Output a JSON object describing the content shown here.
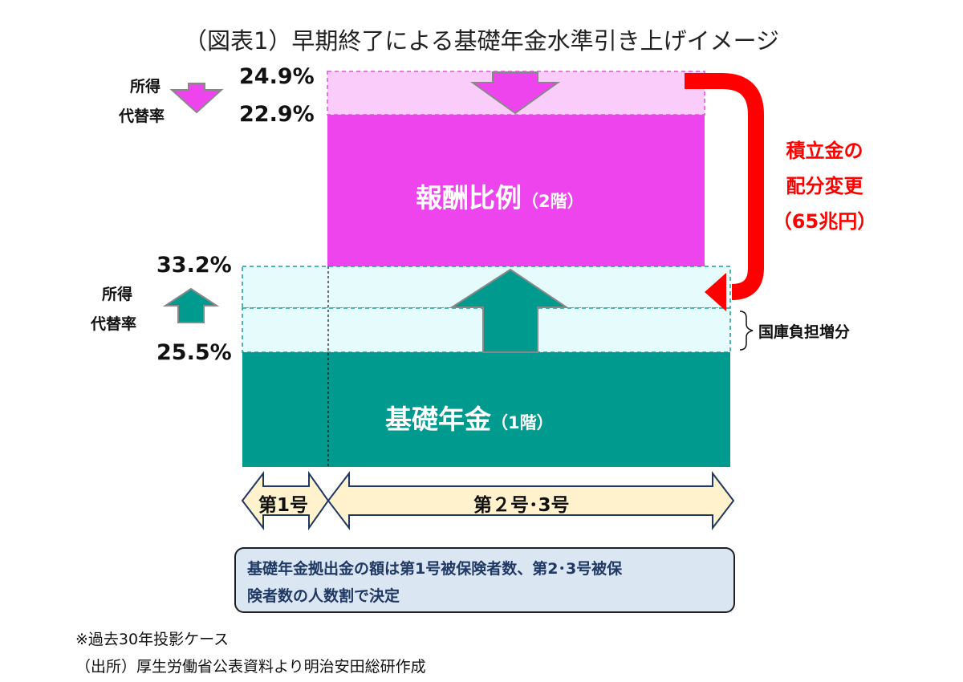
{
  "title": "（図表1）早期終了による基礎年金水準引き上げイメージ",
  "upper": {
    "pct_before": "24.9%",
    "pct_after": "22.9%",
    "label_line1": "所得",
    "label_line2": "代替率",
    "block_main": "報酬比例",
    "block_sub": "（2階）"
  },
  "lower": {
    "pct_after": "33.2%",
    "pct_before": "25.5%",
    "label_line1": "所得",
    "label_line2": "代替率",
    "block_main": "基礎年金",
    "block_sub": "（1階）"
  },
  "transfer": {
    "line1": "積立金の",
    "line2": "配分変更",
    "line3": "（65兆円）"
  },
  "brace_label": "国庫負担増分",
  "insured": {
    "first": "第1号",
    "second_third": "第２号･3号"
  },
  "note": {
    "line1": "基礎年金拠出金の額は第1号被保険者数、第2･3号被保",
    "line2": "険者数の人数割で決定"
  },
  "footnotes": {
    "line1": "※過去30年投影ケース",
    "line2": "（出所）厚生労働省公表資料より明治安田総研作成"
  },
  "colors": {
    "magenta": "#ee44ee",
    "magenta_light": "#f9ccf9",
    "teal": "#009a8e",
    "teal_light": "#e6fbfc",
    "red": "#ff0000",
    "arrow_fill": "#fff2cc"
  }
}
